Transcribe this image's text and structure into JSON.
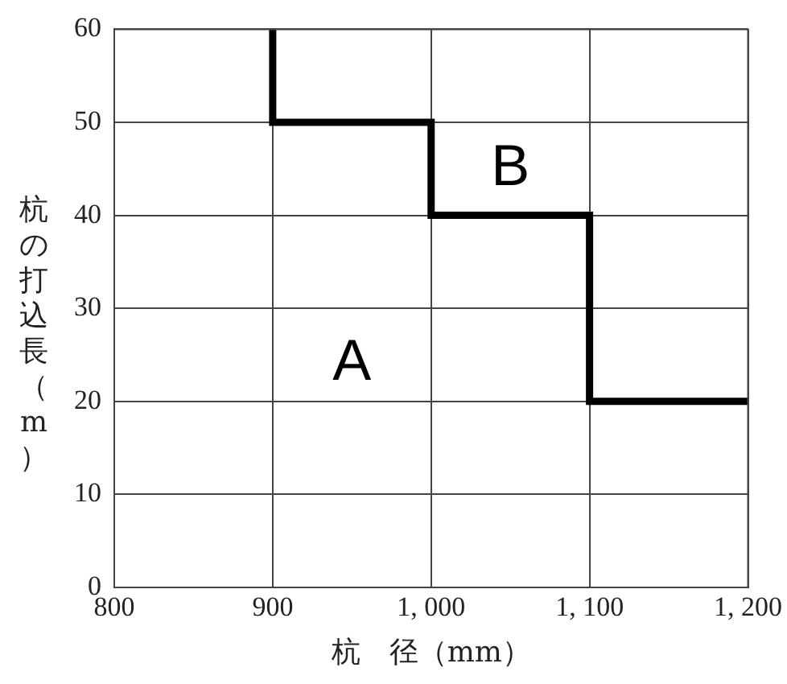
{
  "chart_data": {
    "type": "line",
    "xlabel": "杭　径（mm）",
    "ylabel": "杭の打込長（m）",
    "x": [
      900,
      900,
      1000,
      1000,
      1100,
      1100,
      1200
    ],
    "series": [
      {
        "color": "#000000",
        "values": [
          60,
          50,
          50,
          40,
          40,
          20,
          20
        ]
      }
    ],
    "xlim": [
      800,
      1200
    ],
    "xticks": [
      800,
      900,
      {
        "value": 1000,
        "label": "1, 000"
      },
      {
        "value": 1100,
        "label": "1, 100"
      },
      {
        "value": 1200,
        "label": "1, 200"
      }
    ],
    "ylim": [
      0,
      60
    ],
    "yticks": [
      0,
      10,
      20,
      30,
      40,
      50,
      60
    ],
    "annotations": [
      "A",
      "B"
    ],
    "grid": true,
    "legend": false,
    "marker": "none",
    "line_style": "solid"
  }
}
